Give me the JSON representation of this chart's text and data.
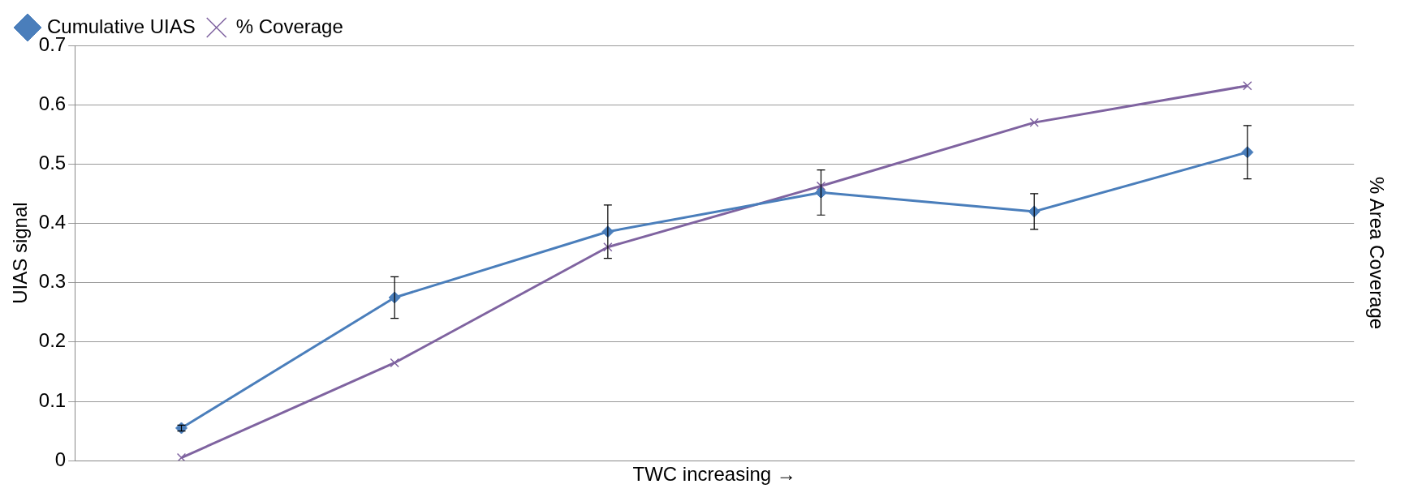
{
  "chart_data": {
    "type": "line",
    "xlabel": "TWC increasing →",
    "ylabel": "UIAS signal",
    "y2label": "% Area Coverage",
    "categories": [
      null,
      null,
      null,
      null,
      null,
      null
    ],
    "series": [
      {
        "name": "Cumulative UIAS",
        "color": "#4a7ebb",
        "marker": "diamond",
        "values": [
          0.055,
          0.275,
          0.386,
          0.452,
          0.42,
          0.52
        ],
        "errors": [
          0.005,
          0.035,
          0.045,
          0.038,
          0.03,
          0.045
        ]
      },
      {
        "name": "% Coverage",
        "color": "#7f63a0",
        "marker": "cross",
        "values": [
          0.005,
          0.165,
          0.36,
          0.463,
          0.57,
          0.632
        ]
      }
    ],
    "ylim": [
      0,
      0.7
    ],
    "yticks": [
      0,
      0.1,
      0.2,
      0.3,
      0.4,
      0.5,
      0.6,
      0.7
    ],
    "grid": "y",
    "legend": "top left",
    "tick_labels": "y"
  }
}
